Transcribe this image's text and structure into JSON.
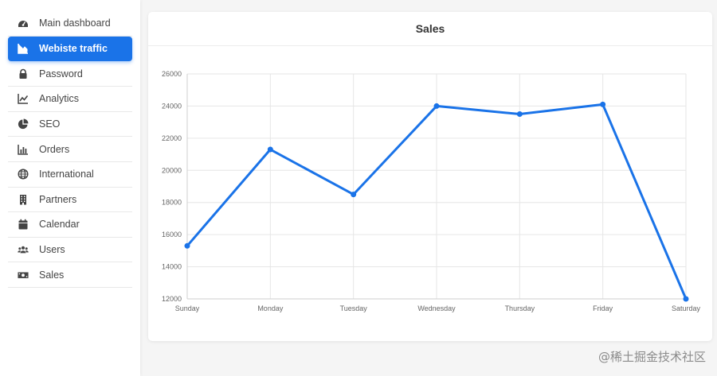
{
  "sidebar": {
    "items": [
      {
        "label": "Main dashboard",
        "icon": "gauge-icon",
        "active": false
      },
      {
        "label": "Webiste traffic",
        "icon": "area-chart-icon",
        "active": true
      },
      {
        "label": "Password",
        "icon": "lock-icon",
        "active": false
      },
      {
        "label": "Analytics",
        "icon": "line-chart-icon",
        "active": false
      },
      {
        "label": "SEO",
        "icon": "pie-chart-icon",
        "active": false
      },
      {
        "label": "Orders",
        "icon": "bar-chart-icon",
        "active": false
      },
      {
        "label": "International",
        "icon": "globe-icon",
        "active": false
      },
      {
        "label": "Partners",
        "icon": "building-icon",
        "active": false
      },
      {
        "label": "Calendar",
        "icon": "calendar-icon",
        "active": false
      },
      {
        "label": "Users",
        "icon": "users-icon",
        "active": false
      },
      {
        "label": "Sales",
        "icon": "money-icon",
        "active": false
      }
    ]
  },
  "card": {
    "title": "Sales"
  },
  "chart_data": {
    "type": "line",
    "categories": [
      "Sunday",
      "Monday",
      "Tuesday",
      "Wednesday",
      "Thursday",
      "Friday",
      "Saturday"
    ],
    "series": [
      {
        "values": [
          15300,
          21300,
          18500,
          24000,
          23500,
          24100,
          12000
        ],
        "color": "#1a73e8"
      }
    ],
    "title": "",
    "ylim": [
      12000,
      26000
    ],
    "yticks": [
      12000,
      14000,
      16000,
      18000,
      20000,
      22000,
      24000,
      26000
    ],
    "grid": true
  },
  "watermark": "@稀土掘金技术社区",
  "colors": {
    "accent": "#1a73e8"
  }
}
